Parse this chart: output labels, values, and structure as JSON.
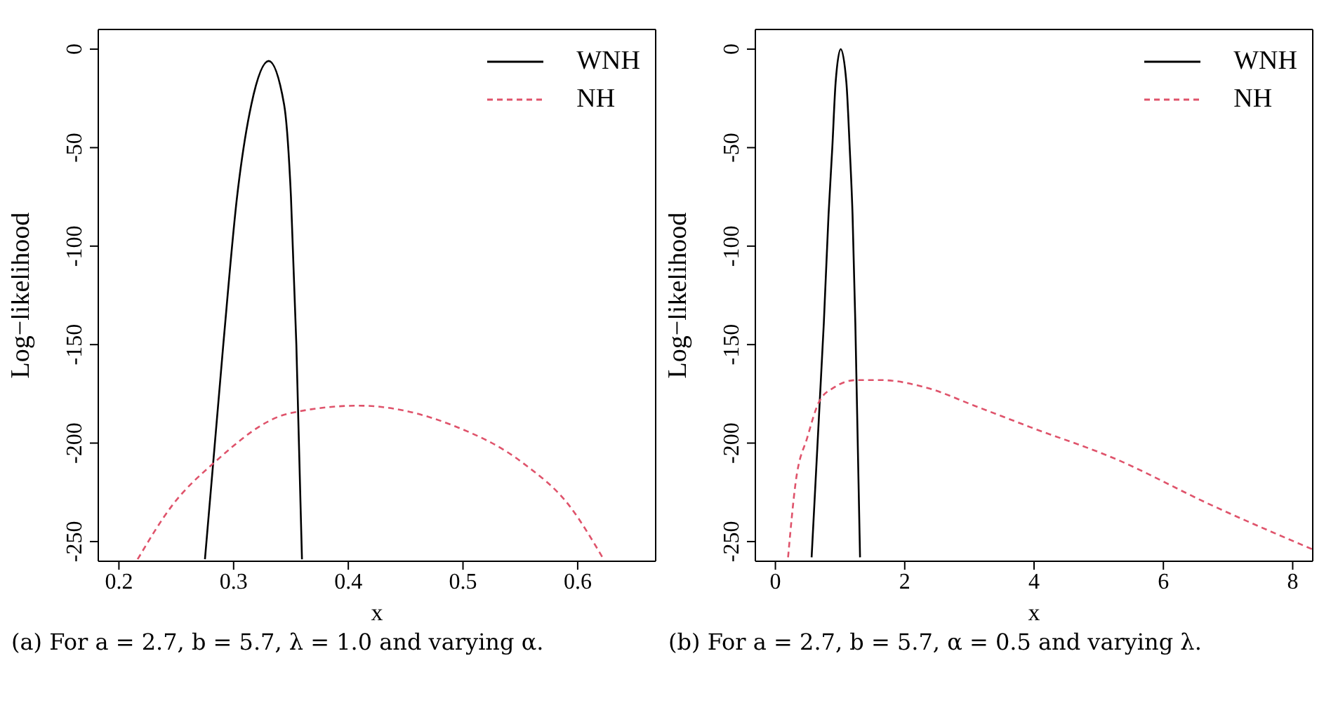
{
  "chart_data": [
    {
      "type": "line",
      "xlabel": "x",
      "ylabel": "Log−likelihood",
      "xlim": [
        0.182,
        0.668
      ],
      "ylim": [
        -260,
        10
      ],
      "xticks": [
        0.2,
        0.3,
        0.4,
        0.5,
        0.6
      ],
      "yticks": [
        -250,
        -200,
        -150,
        -100,
        -50,
        0
      ],
      "legend": "top right",
      "marker": "none",
      "annotations": [
        "(a) For a = 2.7, b = 5.7, λ = 1.0 and varying α."
      ],
      "series": [
        {
          "name": "WNH",
          "color": "#000000",
          "line_style": "solid",
          "x": [
            0.275,
            0.291,
            0.303,
            0.3155,
            0.3306,
            0.344,
            0.35,
            0.3547,
            0.3596
          ],
          "values": [
            -259,
            -150,
            -75,
            -28,
            -6,
            -28,
            -75,
            -150,
            -259
          ]
        },
        {
          "name": "NH",
          "color": "#df536b",
          "line_style": "dashed",
          "x": [
            0.2163,
            0.246,
            0.2829,
            0.348,
            0.409,
            0.491,
            0.552,
            0.593,
            0.6216
          ],
          "values": [
            -259,
            -232,
            -210,
            -185,
            -181,
            -191,
            -210,
            -232,
            -258
          ]
        }
      ]
    },
    {
      "type": "line",
      "xlabel": "x",
      "ylabel": "Log−likelihood",
      "xlim": [
        -0.31,
        8.31
      ],
      "ylim": [
        -260,
        10
      ],
      "xticks": [
        0,
        2,
        4,
        6,
        8
      ],
      "yticks": [
        -250,
        -200,
        -150,
        -100,
        -50,
        0
      ],
      "legend": "top right",
      "marker": "none",
      "annotations": [
        "(b) For a = 2.7, b = 5.7, α = 0.5 and varying λ."
      ],
      "series": [
        {
          "name": "WNH",
          "color": "#000000",
          "line_style": "solid",
          "x": [
            0.56,
            0.749,
            0.822,
            0.88,
            0.931,
            1.01,
            1.098,
            1.149,
            1.193,
            1.236,
            1.309
          ],
          "values": [
            -258,
            -139,
            -84,
            -50,
            -17,
            0,
            -17,
            -50,
            -84,
            -139,
            -258
          ]
        },
        {
          "name": "NH",
          "color": "#df536b",
          "line_style": "dashed",
          "x": [
            0.196,
            0.313,
            0.495,
            0.676,
            0.895,
            1.258,
            1.62,
            2.35,
            3.076,
            3.95,
            5.258,
            6.71,
            8.31
          ],
          "values": [
            -258,
            -220,
            -197,
            -179,
            -172,
            -168,
            -168,
            -172,
            -181,
            -192,
            -208,
            -231,
            -254
          ]
        }
      ]
    }
  ]
}
